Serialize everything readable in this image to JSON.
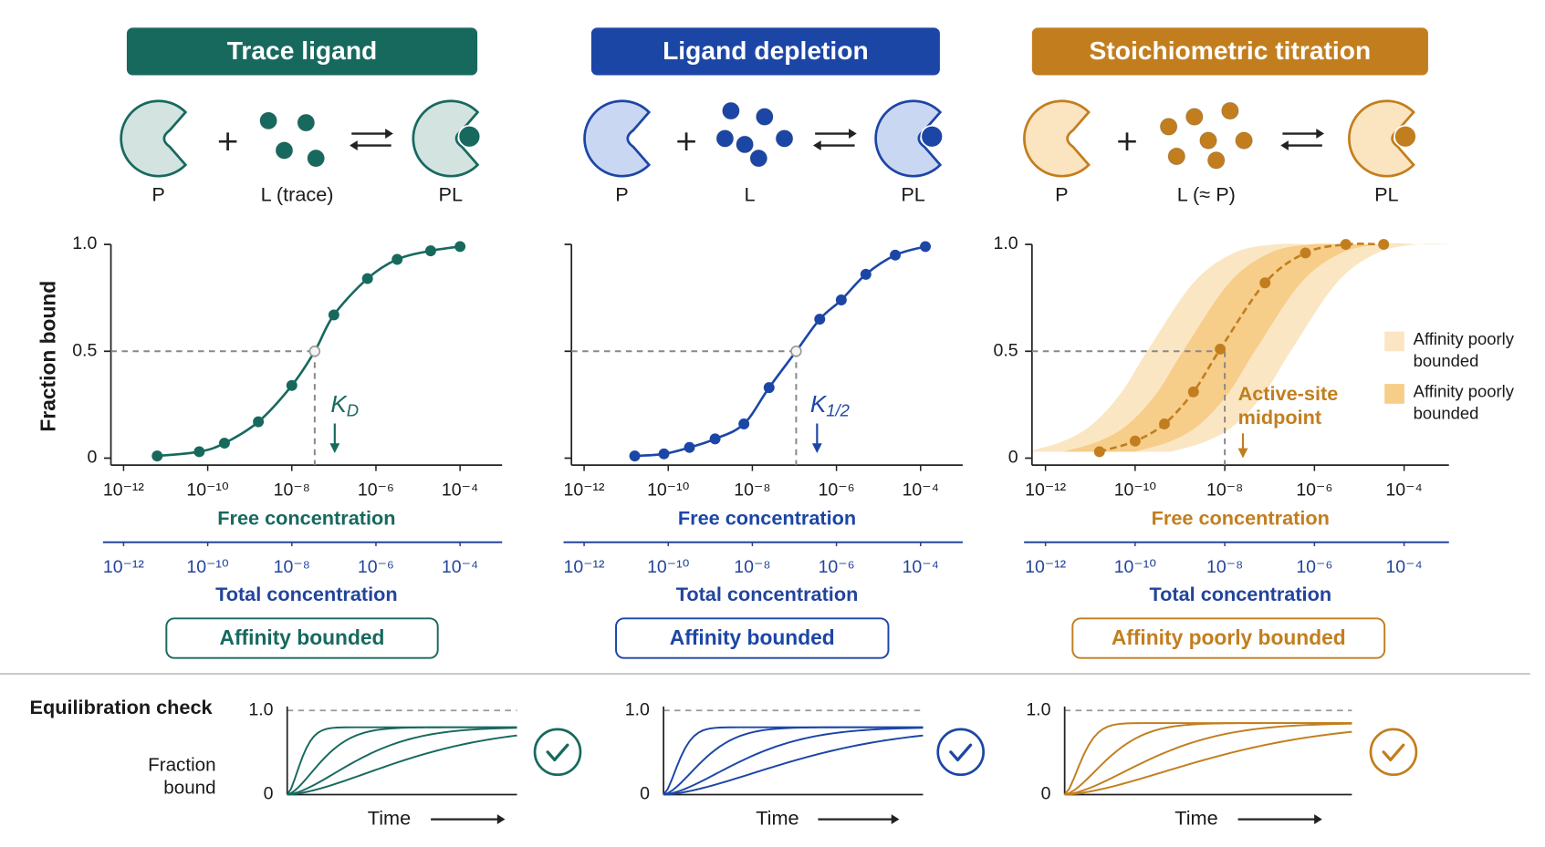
{
  "panels": [
    {
      "title": "Trace ligand",
      "color": "#17695e",
      "light": "#d3e3df",
      "species": [
        "P",
        "L (trace)",
        "PL"
      ],
      "chart": {
        "type": "line",
        "y_label": "Fraction bound",
        "x_label": "Free concentration",
        "x2_label": "Total concentration",
        "log_x": true,
        "xlim": [
          5e-13,
          0.001
        ],
        "xticks": [
          {
            "value": 1e-12,
            "label": "10⁻¹²"
          },
          {
            "value": 1e-10,
            "label": "10⁻¹⁰"
          },
          {
            "value": 1e-08,
            "label": "10⁻⁸"
          },
          {
            "value": 1e-06,
            "label": "10⁻⁶"
          },
          {
            "value": 0.0001,
            "label": "10⁻⁴"
          }
        ],
        "x2lim": [
          5e-13,
          0.001
        ],
        "x2ticks": [
          {
            "value": 1e-12,
            "label": "10⁻¹²"
          },
          {
            "value": 1e-10,
            "label": "10⁻¹⁰"
          },
          {
            "value": 1e-08,
            "label": "10⁻⁸"
          },
          {
            "value": 1e-06,
            "label": "10⁻⁶"
          },
          {
            "value": 0.0001,
            "label": "10⁻⁴"
          }
        ],
        "ylim": [
          0,
          1
        ],
        "yticks": [
          0,
          0.5,
          {
            "value": 1,
            "label": "1.0"
          }
        ],
        "ytick_labels": true,
        "x": [
          6.3e-12,
          6.3e-11,
          2.5e-10,
          1.6e-09,
          1e-08,
          3.5e-08,
          1e-07,
          6.3e-07,
          3.2e-06,
          2e-05,
          0.0001
        ],
        "values": [
          0.01,
          0.03,
          0.07,
          0.17,
          0.34,
          0.5,
          0.67,
          0.84,
          0.93,
          0.97,
          0.99
        ],
        "line_style": "solid",
        "midpoint": {
          "x": 3.5e-08,
          "y": 0.5
        },
        "midpoint_marker": true,
        "annotation": {
          "text": "K",
          "sub": "D"
        }
      },
      "badge": "Affinity bounded"
    },
    {
      "title": "Ligand depletion",
      "color": "#1c46a6",
      "light": "#cad7f2",
      "species": [
        "P",
        "L",
        "PL"
      ],
      "chart": {
        "type": "line",
        "x_label": "Free concentration",
        "x2_label": "Total concentration",
        "log_x": true,
        "xlim": [
          5e-13,
          0.001
        ],
        "xticks": [
          {
            "value": 1e-12,
            "label": "10⁻¹²"
          },
          {
            "value": 1e-10,
            "label": "10⁻¹⁰"
          },
          {
            "value": 1e-08,
            "label": "10⁻⁸"
          },
          {
            "value": 1e-06,
            "label": "10⁻⁶"
          },
          {
            "value": 0.0001,
            "label": "10⁻⁴"
          }
        ],
        "x2lim": [
          5e-13,
          0.001
        ],
        "x2ticks": [
          {
            "value": 1e-12,
            "label": "10⁻¹²"
          },
          {
            "value": 1e-10,
            "label": "10⁻¹⁰"
          },
          {
            "value": 1e-08,
            "label": "10⁻⁸"
          },
          {
            "value": 1e-06,
            "label": "10⁻⁶"
          },
          {
            "value": 0.0001,
            "label": "10⁻⁴"
          }
        ],
        "ylim": [
          0,
          1
        ],
        "yticks": [
          0,
          0.5,
          1
        ],
        "ytick_labels": false,
        "x": [
          1.6e-11,
          7.9e-11,
          3.2e-10,
          1.3e-09,
          6.3e-09,
          2.5e-08,
          1.1e-07,
          4e-07,
          1.3e-06,
          5e-06,
          2.5e-05,
          0.00013
        ],
        "values": [
          0.01,
          0.02,
          0.05,
          0.09,
          0.16,
          0.33,
          0.5,
          0.65,
          0.74,
          0.86,
          0.95,
          0.99
        ],
        "line_style": "solid",
        "midpoint": {
          "x": 1.1e-07,
          "y": 0.5
        },
        "midpoint_marker": true,
        "annotation": {
          "text": "K",
          "sub": "1/2"
        }
      },
      "badge": "Affinity bounded"
    },
    {
      "title": "Stoichiometric titration",
      "color": "#c27e1e",
      "light": "#fbe4c0",
      "species": [
        "P",
        "L (≈ P)",
        "PL"
      ],
      "chart": {
        "type": "line",
        "x_label": "Free concentration",
        "x2_label": "Total concentration",
        "log_x": true,
        "xlim": [
          5e-13,
          0.001
        ],
        "xticks": [
          {
            "value": 1e-12,
            "label": "10⁻¹²"
          },
          {
            "value": 1e-10,
            "label": "10⁻¹⁰"
          },
          {
            "value": 1e-08,
            "label": "10⁻⁸"
          },
          {
            "value": 1e-06,
            "label": "10⁻⁶"
          },
          {
            "value": 0.0001,
            "label": "10⁻⁴"
          }
        ],
        "x2lim": [
          5e-13,
          0.001
        ],
        "x2ticks": [
          {
            "value": 1e-12,
            "label": "10⁻¹²"
          },
          {
            "value": 1e-10,
            "label": "10⁻¹⁰"
          },
          {
            "value": 1e-08,
            "label": "10⁻⁸"
          },
          {
            "value": 1e-06,
            "label": "10⁻⁶"
          },
          {
            "value": 0.0001,
            "label": "10⁻⁴"
          }
        ],
        "ylim": [
          0,
          1
        ],
        "yticks": [
          0,
          0.5,
          {
            "value": 1,
            "label": "1.0"
          }
        ],
        "ytick_labels": true,
        "x": [
          1.6e-11,
          1e-10,
          4.5e-10,
          2e-09,
          7.9e-09,
          7.9e-08,
          6.3e-07,
          5e-06,
          3.5e-05
        ],
        "values": [
          0.03,
          0.08,
          0.16,
          0.31,
          0.51,
          0.82,
          0.96,
          1.0,
          1.0
        ],
        "line_style": "dashed",
        "midpoint": {
          "x": 1e-08,
          "y": 0.5
        },
        "midpoint_marker": false,
        "bands": [
          {
            "name_lines": [
              "Affinity poorly",
              "bounded"
            ],
            "color": "#fbe6c4",
            "x_offset_decades": 1.6
          },
          {
            "name_lines": [
              "Affinity poorly",
              "bounded"
            ],
            "color": "#f7cd8a",
            "x_offset_decades": 0.8
          }
        ],
        "annotation": {
          "lines": [
            "Active-site",
            "midpoint"
          ]
        }
      },
      "badge": "Affinity poorly bounded"
    }
  ],
  "equilibration": {
    "label": "Equilibration check",
    "y_label": [
      "Fraction",
      "bound"
    ],
    "x_label": "Time",
    "ylim": [
      0,
      1
    ],
    "yticks": [
      0,
      {
        "value": 1,
        "label": "1.0"
      }
    ],
    "panels": [
      {
        "plateau": 0.8,
        "half_times": [
          0.06,
          0.15,
          0.3,
          0.5
        ]
      },
      {
        "plateau": 0.8,
        "half_times": [
          0.06,
          0.15,
          0.3,
          0.5
        ]
      },
      {
        "plateau": 0.85,
        "half_times": [
          0.06,
          0.15,
          0.3,
          0.5
        ]
      }
    ]
  }
}
